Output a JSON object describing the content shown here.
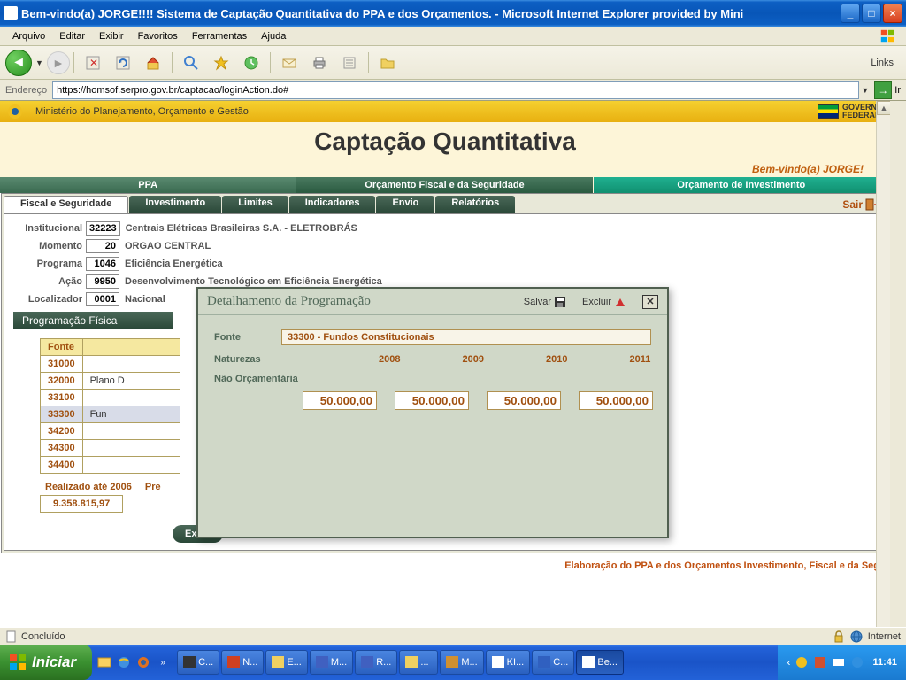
{
  "window": {
    "title": "Bem-vindo(a) JORGE!!!! Sistema de Captação Quantitativa do PPA e dos Orçamentos. - Microsoft Internet Explorer provided by Mini"
  },
  "menu": {
    "arquivo": "Arquivo",
    "editar": "Editar",
    "exibir": "Exibir",
    "favoritos": "Favoritos",
    "ferramentas": "Ferramentas",
    "ajuda": "Ajuda"
  },
  "toolbar": {
    "links": "Links"
  },
  "address": {
    "label": "Endereço",
    "url": "https://homsof.serpro.gov.br/captacao/loginAction.do#",
    "go": "Ir"
  },
  "app": {
    "ministry": "Ministério do Planejamento, Orçamento e Gestão",
    "gov1": "GOVERNO",
    "gov2": "FEDERAL",
    "title": "Captação Quantitativa",
    "welcome": "Bem-vindo(a) JORGE!"
  },
  "maintabs": {
    "ppa": "PPA",
    "fiscal": "Orçamento Fiscal e da Seguridade",
    "invest": "Orçamento de Investimento"
  },
  "subtabs": {
    "fiscal": "Fiscal e Seguridade",
    "invest": "Investimento",
    "limites": "Limites",
    "indic": "Indicadores",
    "envio": "Envio",
    "rel": "Relatórios",
    "sair": "Sair"
  },
  "form": {
    "inst_lbl": "Institucional",
    "inst_val": "32223",
    "inst_desc": "Centrais Elétricas Brasileiras S.A. - ELETROBRÁS",
    "mom_lbl": "Momento",
    "mom_val": "20",
    "mom_desc": "ORGAO CENTRAL",
    "prog_lbl": "Programa",
    "prog_val": "1046",
    "prog_desc": "Eficiência Energética",
    "acao_lbl": "Ação",
    "acao_val": "9950",
    "acao_desc": "Desenvolvimento Tecnológico em Eficiência Energética",
    "loc_lbl": "Localizador",
    "loc_val": "0001",
    "loc_desc": "Nacional"
  },
  "progfis": "Programação Física",
  "fonte": {
    "header": "Fonte",
    "rows": [
      {
        "code": "31000",
        "desc": ""
      },
      {
        "code": "32000",
        "desc": "Plano D"
      },
      {
        "code": "33100",
        "desc": ""
      },
      {
        "code": "33300",
        "desc": "Fun",
        "sel": true
      },
      {
        "code": "34200",
        "desc": ""
      },
      {
        "code": "34300",
        "desc": ""
      },
      {
        "code": "34400",
        "desc": ""
      }
    ]
  },
  "realizado": {
    "lbl": "Realizado até 2006",
    "pre": "Pre",
    "val": "9.358.815,97"
  },
  "excluir": "Exclu",
  "footer": "Elaboração do PPA e dos Orçamentos Investimento, Fiscal e da Seg",
  "modal": {
    "title": "Detalhamento da Programação",
    "salvar": "Salvar",
    "excluir": "Excluir",
    "fonte_lbl": "Fonte",
    "fonte_val": "33300 - Fundos Constitucionais",
    "nat_lbl": "Naturezas",
    "years": [
      "2008",
      "2009",
      "2010",
      "2011"
    ],
    "section": "Não Orçamentária",
    "amounts": [
      "50.000,00",
      "50.000,00",
      "50.000,00",
      "50.000,00"
    ]
  },
  "status": {
    "done": "Concluído",
    "zone": "Internet"
  },
  "taskbar": {
    "start": "Iniciar",
    "tasks": [
      "C...",
      "N...",
      "E...",
      "M...",
      "R...",
      "...",
      "M...",
      "KI...",
      "C...",
      "Be..."
    ],
    "clock": "11:41"
  }
}
